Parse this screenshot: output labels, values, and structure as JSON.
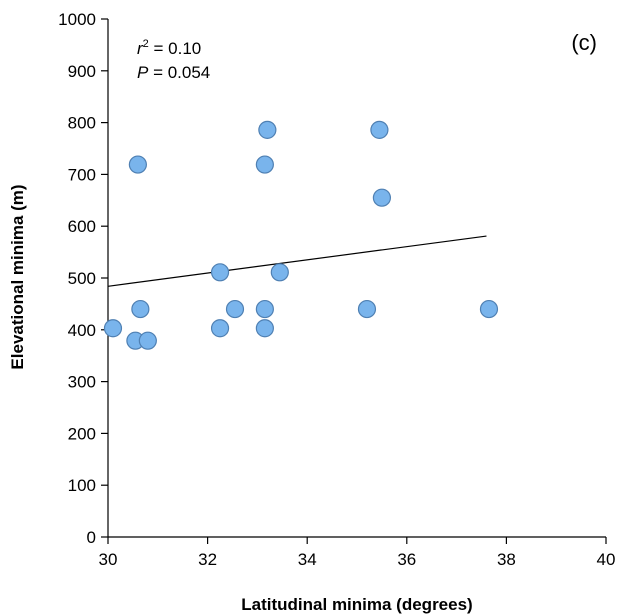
{
  "chart_data": {
    "type": "scatter",
    "panel_label": "(c)",
    "xlabel": "Latitudinal minima (degrees)",
    "ylabel": "Elevational minima (m)",
    "xlim": [
      30,
      40
    ],
    "ylim": [
      0,
      1000
    ],
    "x_ticks": [
      "30",
      "32",
      "34",
      "36",
      "38",
      "40"
    ],
    "y_ticks": [
      "0",
      "100",
      "200",
      "300",
      "400",
      "500",
      "600",
      "700",
      "800",
      "900",
      "1000"
    ],
    "x_tick_values": [
      30,
      32,
      34,
      36,
      38,
      40
    ],
    "y_tick_values": [
      0,
      100,
      200,
      300,
      400,
      500,
      600,
      700,
      800,
      900,
      1000
    ],
    "annotations": {
      "r2_symbol": "r",
      "r2_superscript": "2",
      "r2_value": " = 0.10",
      "p_symbol": "P",
      "p_value": " = 0.054"
    },
    "points": [
      {
        "x": 30.1,
        "y": 403
      },
      {
        "x": 30.55,
        "y": 379
      },
      {
        "x": 30.8,
        "y": 379
      },
      {
        "x": 30.65,
        "y": 440
      },
      {
        "x": 30.6,
        "y": 719
      },
      {
        "x": 32.25,
        "y": 511
      },
      {
        "x": 32.25,
        "y": 403
      },
      {
        "x": 32.55,
        "y": 440
      },
      {
        "x": 33.15,
        "y": 719
      },
      {
        "x": 33.2,
        "y": 786
      },
      {
        "x": 33.15,
        "y": 440
      },
      {
        "x": 33.15,
        "y": 403
      },
      {
        "x": 33.45,
        "y": 511
      },
      {
        "x": 35.2,
        "y": 440
      },
      {
        "x": 35.45,
        "y": 786
      },
      {
        "x": 35.5,
        "y": 655
      },
      {
        "x": 37.65,
        "y": 440
      }
    ],
    "trendline": {
      "x": [
        30,
        37.6
      ],
      "y": [
        484,
        581
      ]
    },
    "grid": false,
    "legend": "none"
  }
}
